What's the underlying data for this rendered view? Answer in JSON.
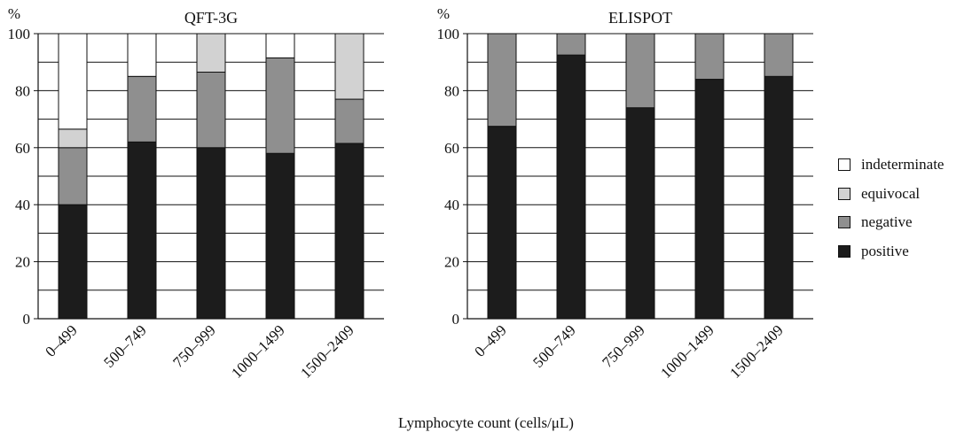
{
  "colors": {
    "positive": "#1c1c1c",
    "negative": "#8f8f8f",
    "equivocal": "#d2d2d2",
    "indeterminate": "#ffffff"
  },
  "xlabel": "Lymphocyte count (cells/μL)",
  "legend": [
    {
      "key": "indeterminate",
      "label": "indeterminate"
    },
    {
      "key": "equivocal",
      "label": "equivocal"
    },
    {
      "key": "negative",
      "label": "negative"
    },
    {
      "key": "positive",
      "label": "positive"
    }
  ],
  "chart_data": [
    {
      "type": "bar",
      "stacked": true,
      "title": "QFT-3G",
      "ylabel": "%",
      "ylim": [
        0,
        100
      ],
      "yticks": [
        0,
        20,
        40,
        60,
        80,
        100
      ],
      "grid": true,
      "categories": [
        "0–499",
        "500–749",
        "750–999",
        "1000–1499",
        "1500–2409"
      ],
      "series": [
        {
          "name": "positive",
          "values": [
            40,
            62,
            60,
            58,
            61.5
          ]
        },
        {
          "name": "negative",
          "values": [
            20,
            23,
            26.5,
            33.5,
            15.5
          ]
        },
        {
          "name": "equivocal",
          "values": [
            6.5,
            0,
            13.5,
            0,
            23
          ]
        },
        {
          "name": "indeterminate",
          "values": [
            33.5,
            15,
            0,
            8.5,
            0
          ]
        }
      ]
    },
    {
      "type": "bar",
      "stacked": true,
      "title": "ELISPOT",
      "ylabel": "%",
      "ylim": [
        0,
        100
      ],
      "yticks": [
        0,
        20,
        40,
        60,
        80,
        100
      ],
      "grid": true,
      "categories": [
        "0–499",
        "500–749",
        "750–999",
        "1000–1499",
        "1500–2409"
      ],
      "series": [
        {
          "name": "positive",
          "values": [
            67.5,
            92.5,
            74,
            84,
            85
          ]
        },
        {
          "name": "negative",
          "values": [
            32.5,
            7.5,
            26,
            16,
            15
          ]
        },
        {
          "name": "equivocal",
          "values": [
            0,
            0,
            0,
            0,
            0
          ]
        },
        {
          "name": "indeterminate",
          "values": [
            0,
            0,
            0,
            0,
            0
          ]
        }
      ]
    }
  ]
}
